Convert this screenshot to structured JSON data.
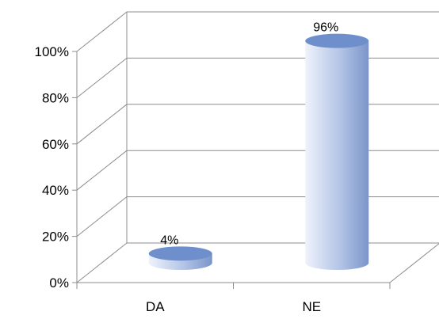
{
  "chart_data": {
    "type": "bar",
    "style": "3d-cylinder",
    "categories": [
      "DA",
      "NE"
    ],
    "values": [
      4,
      96
    ],
    "data_labels": [
      "4%",
      "96%"
    ],
    "ylim": [
      0,
      100
    ],
    "y_ticks": [
      0,
      20,
      40,
      60,
      80,
      100
    ],
    "y_tick_labels": [
      "0%",
      "20%",
      "40%",
      "60%",
      "80%",
      "100%"
    ],
    "grid": true,
    "legend": "none",
    "colors": {
      "bar_light": "#eef2fb",
      "bar_mid": "#b3c4e6",
      "bar_dark": "#7b95c9",
      "bar_top": "#6f8fcc",
      "grid": "#8c8c8c"
    }
  }
}
